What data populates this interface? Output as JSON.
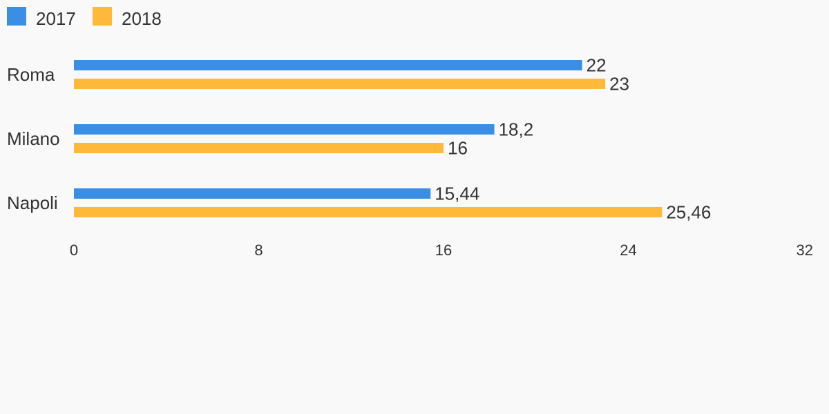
{
  "chart_data": {
    "type": "bar",
    "orientation": "horizontal",
    "categories": [
      "Roma",
      "Milano",
      "Napoli"
    ],
    "series": [
      {
        "name": "2017",
        "color": "#3a8ee6",
        "values": [
          22,
          18.2,
          15.44
        ],
        "value_labels": [
          "22",
          "18,2",
          "15,44"
        ]
      },
      {
        "name": "2018",
        "color": "#ffb93a",
        "values": [
          23,
          16,
          25.46
        ],
        "value_labels": [
          "23",
          "16",
          "25,46"
        ]
      }
    ],
    "xlim": [
      0,
      32
    ],
    "ticks": [
      0,
      8,
      16,
      24,
      32
    ],
    "tick_labels": [
      "0",
      "8",
      "16",
      "24",
      "32"
    ],
    "legend": "top-left",
    "grid": false,
    "title": "",
    "xlabel": "",
    "ylabel": ""
  }
}
